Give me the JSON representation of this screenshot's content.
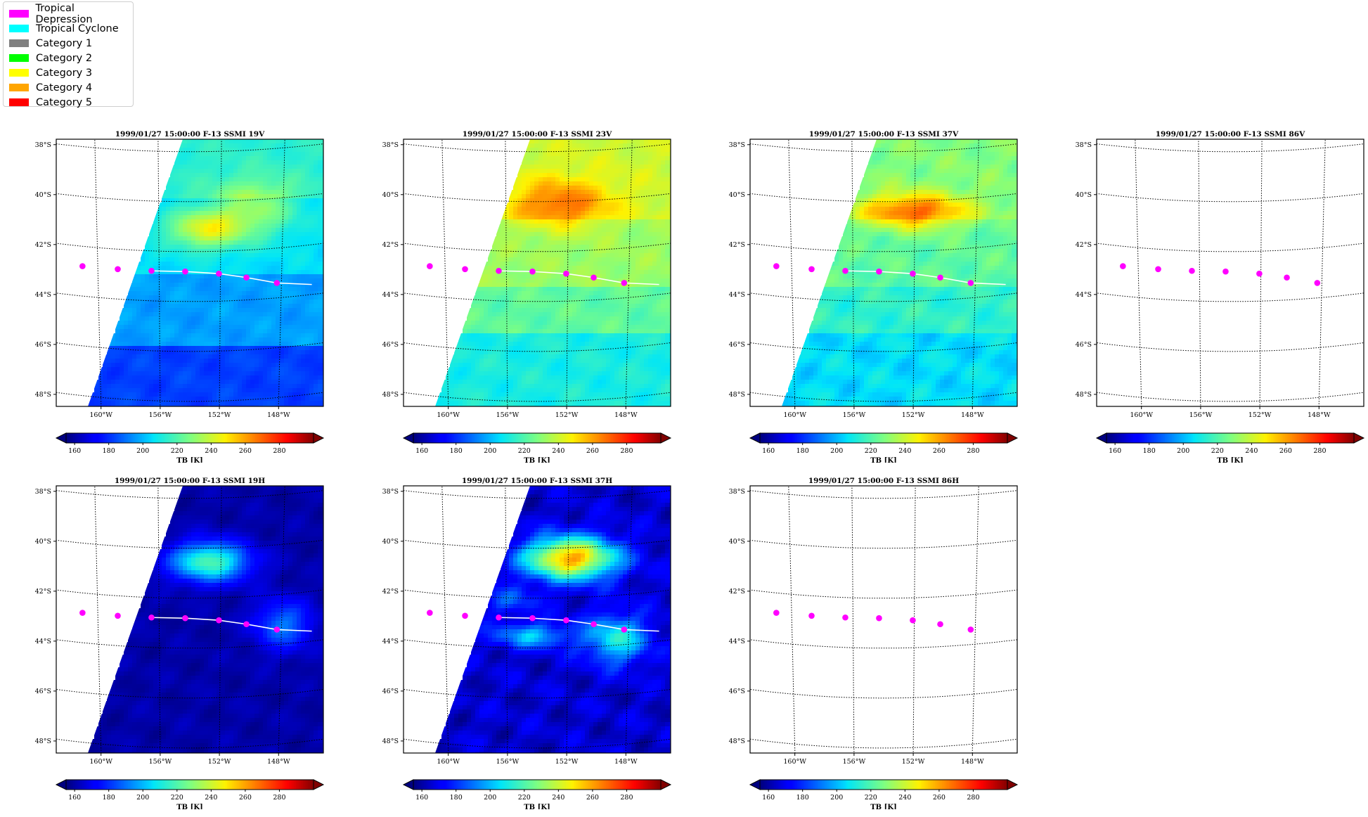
{
  "legend": {
    "items": [
      {
        "label": "Tropical Depression",
        "color": "#ff00ff"
      },
      {
        "label": "Tropical Cyclone",
        "color": "#00ffff"
      },
      {
        "label": "Category 1",
        "color": "#808080"
      },
      {
        "label": "Category 2",
        "color": "#00ff00"
      },
      {
        "label": "Category 3",
        "color": "#ffff00"
      },
      {
        "label": "Category 4",
        "color": "#ffa500"
      },
      {
        "label": "Category 5",
        "color": "#ff0000"
      }
    ]
  },
  "chart_data": [
    {
      "type": "heatmap",
      "title": "1999/01/27 15:00:00  F-13 SSMI 19V",
      "channel": "19V",
      "data_coverage": "swath",
      "scene": "moderate",
      "xlabel": "",
      "ylabel": "",
      "x_ticks": [
        "160°W",
        "156°W",
        "152°W",
        "148°W"
      ],
      "y_ticks": [
        "38°S",
        "40°S",
        "42°S",
        "44°S",
        "46°S",
        "48°S"
      ],
      "track": {
        "lon": [
          -161.0,
          -158.7,
          -156.5,
          -154.3,
          -152.1,
          -150.3,
          -148.3
        ],
        "lat": [
          -42.8,
          -42.8,
          -42.8,
          -42.8,
          -42.9,
          -43.1,
          -43.4
        ]
      },
      "colorbar": {
        "label": "TB [K]",
        "ticks": [
          160,
          180,
          200,
          220,
          240,
          260,
          280
        ],
        "range": [
          155,
          300
        ],
        "cmap": "jet"
      }
    },
    {
      "type": "heatmap",
      "title": "1999/01/27 15:00:00  F-13 SSMI 23V",
      "channel": "23V",
      "data_coverage": "swath",
      "scene": "warm",
      "xlabel": "",
      "ylabel": "",
      "x_ticks": [
        "160°W",
        "156°W",
        "152°W",
        "148°W"
      ],
      "y_ticks": [
        "38°S",
        "40°S",
        "42°S",
        "44°S",
        "46°S",
        "48°S"
      ],
      "track": {
        "lon": [
          -161.0,
          -158.7,
          -156.5,
          -154.3,
          -152.1,
          -150.3,
          -148.3
        ],
        "lat": [
          -42.8,
          -42.8,
          -42.8,
          -42.8,
          -42.9,
          -43.1,
          -43.4
        ]
      },
      "colorbar": {
        "label": "TB [K]",
        "ticks": [
          160,
          180,
          200,
          220,
          240,
          260,
          280
        ],
        "range": [
          155,
          300
        ],
        "cmap": "jet"
      }
    },
    {
      "type": "heatmap",
      "title": "1999/01/27 15:00:00  F-13 SSMI 37V",
      "channel": "37V",
      "data_coverage": "swath",
      "scene": "warm2",
      "xlabel": "",
      "ylabel": "",
      "x_ticks": [
        "160°W",
        "156°W",
        "152°W",
        "148°W"
      ],
      "y_ticks": [
        "38°S",
        "40°S",
        "42°S",
        "44°S",
        "46°S",
        "48°S"
      ],
      "track": {
        "lon": [
          -161.0,
          -158.7,
          -156.5,
          -154.3,
          -152.1,
          -150.3,
          -148.3
        ],
        "lat": [
          -42.8,
          -42.8,
          -42.8,
          -42.8,
          -42.9,
          -43.1,
          -43.4
        ]
      },
      "colorbar": {
        "label": "TB [K]",
        "ticks": [
          160,
          180,
          200,
          220,
          240,
          260,
          280
        ],
        "range": [
          155,
          300
        ],
        "cmap": "jet"
      }
    },
    {
      "type": "heatmap",
      "title": "1999/01/27 15:00:00  F-13 SSMI 86V",
      "channel": "86V",
      "data_coverage": "none",
      "scene": "none",
      "xlabel": "",
      "ylabel": "",
      "x_ticks": [
        "160°W",
        "156°W",
        "152°W",
        "148°W"
      ],
      "y_ticks": [
        "38°S",
        "40°S",
        "42°S",
        "44°S",
        "46°S",
        "48°S"
      ],
      "track": {
        "lon": [
          -161.0,
          -158.7,
          -156.5,
          -154.3,
          -152.1,
          -150.3,
          -148.3
        ],
        "lat": [
          -42.8,
          -42.8,
          -42.8,
          -42.8,
          -42.9,
          -43.1,
          -43.4
        ]
      },
      "colorbar": {
        "label": "TB [K]",
        "ticks": [
          160,
          180,
          200,
          220,
          240,
          260,
          280
        ],
        "range": [
          155,
          300
        ],
        "cmap": "jet"
      }
    },
    {
      "type": "heatmap",
      "title": "1999/01/27 15:00:00  F-13 SSMI 19H",
      "channel": "19H",
      "data_coverage": "swath",
      "scene": "cold",
      "xlabel": "",
      "ylabel": "",
      "x_ticks": [
        "160°W",
        "156°W",
        "152°W",
        "148°W"
      ],
      "y_ticks": [
        "38°S",
        "40°S",
        "42°S",
        "44°S",
        "46°S",
        "48°S"
      ],
      "track": {
        "lon": [
          -161.0,
          -158.7,
          -156.5,
          -154.3,
          -152.1,
          -150.3,
          -148.3
        ],
        "lat": [
          -42.8,
          -42.8,
          -42.8,
          -42.8,
          -42.9,
          -43.1,
          -43.4
        ]
      },
      "colorbar": {
        "label": "TB [K]",
        "ticks": [
          160,
          180,
          200,
          220,
          240,
          260,
          280
        ],
        "range": [
          155,
          300
        ],
        "cmap": "jet"
      }
    },
    {
      "type": "heatmap",
      "title": "1999/01/27 15:00:00  F-13 SSMI 37H",
      "channel": "37H",
      "data_coverage": "swath",
      "scene": "cold2",
      "xlabel": "",
      "ylabel": "",
      "x_ticks": [
        "160°W",
        "156°W",
        "152°W",
        "148°W"
      ],
      "y_ticks": [
        "38°S",
        "40°S",
        "42°S",
        "44°S",
        "46°S",
        "48°S"
      ],
      "track": {
        "lon": [
          -161.0,
          -158.7,
          -156.5,
          -154.3,
          -152.1,
          -150.3,
          -148.3
        ],
        "lat": [
          -42.8,
          -42.8,
          -42.8,
          -42.8,
          -42.9,
          -43.1,
          -43.4
        ]
      },
      "colorbar": {
        "label": "TB [K]",
        "ticks": [
          160,
          180,
          200,
          220,
          240,
          260,
          280
        ],
        "range": [
          155,
          300
        ],
        "cmap": "jet"
      }
    },
    {
      "type": "heatmap",
      "title": "1999/01/27 15:00:00  F-13 SSMI 86H",
      "channel": "86H",
      "data_coverage": "none",
      "scene": "none",
      "xlabel": "",
      "ylabel": "",
      "x_ticks": [
        "160°W",
        "156°W",
        "152°W",
        "148°W"
      ],
      "y_ticks": [
        "38°S",
        "40°S",
        "42°S",
        "44°S",
        "46°S",
        "48°S"
      ],
      "track": {
        "lon": [
          -161.0,
          -158.7,
          -156.5,
          -154.3,
          -152.1,
          -150.3,
          -148.3
        ],
        "lat": [
          -42.8,
          -42.8,
          -42.8,
          -42.8,
          -42.9,
          -43.1,
          -43.4
        ]
      },
      "colorbar": {
        "label": "TB [K]",
        "ticks": [
          160,
          180,
          200,
          220,
          240,
          260,
          280
        ],
        "range": [
          155,
          300
        ],
        "cmap": "jet"
      }
    }
  ]
}
